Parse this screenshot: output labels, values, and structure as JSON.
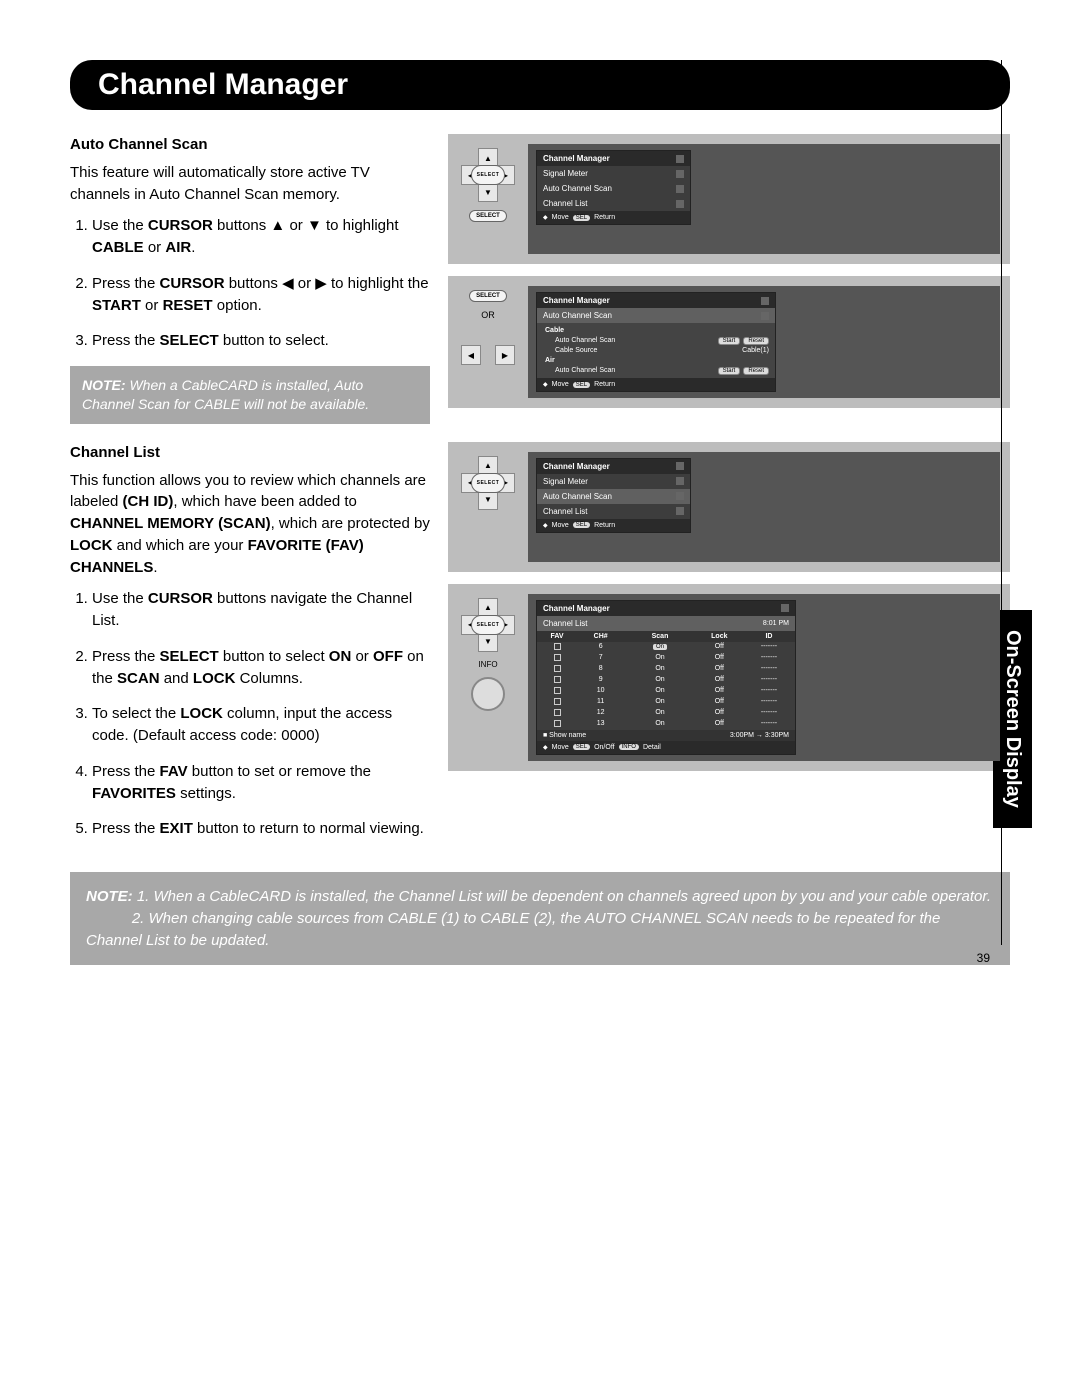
{
  "page": {
    "title": "Channel Manager",
    "side_tab": "On-Screen Display",
    "page_number": "39"
  },
  "section1": {
    "heading": "Auto Channel Scan",
    "intro": "This feature will automatically store active TV channels in Auto Channel Scan memory.",
    "steps": [
      {
        "pre": "Use the ",
        "b1": "CURSOR",
        "mid": " buttons ▲ or ▼ to highlight ",
        "b2": "CABLE",
        "mid2": " or ",
        "b3": "AIR",
        "tail": "."
      },
      {
        "pre": "Press the ",
        "b1": "CURSOR",
        "mid": " buttons ◀ or ▶ to highlight the ",
        "b2": "START",
        "mid2": " or ",
        "b3": "RESET",
        "tail": " option."
      },
      {
        "pre": "Press the ",
        "b1": "SELECT",
        "mid": " button to select.",
        "b2": "",
        "mid2": "",
        "b3": "",
        "tail": ""
      }
    ],
    "note": {
      "label": "NOTE:",
      "text": "When a CableCARD is installed, Auto Channel Scan for CABLE will not be available."
    }
  },
  "osd1": {
    "title": "Channel Manager",
    "items": [
      "Signal Meter",
      "Auto Channel Scan",
      "Channel List"
    ],
    "hint_move": "Move",
    "hint_sel": "SEL",
    "hint_ret": "Return",
    "remote_sel": "SELECT"
  },
  "osd2": {
    "title": "Channel Manager",
    "sub": "Auto Channel Scan",
    "groups": [
      {
        "head": "Cable",
        "rows": [
          {
            "label": "Auto Channel Scan",
            "btns": [
              "Start",
              "Reset"
            ]
          },
          {
            "label": "Cable Source",
            "val": "Cable(1)"
          }
        ]
      },
      {
        "head": "Air",
        "rows": [
          {
            "label": "Auto Channel Scan",
            "btns": [
              "Start",
              "Reset"
            ]
          }
        ]
      }
    ],
    "hint_move": "Move",
    "hint_sel": "SEL",
    "hint_ret": "Return",
    "or": "OR",
    "remote_sel": "SELECT"
  },
  "section2": {
    "heading": "Channel List",
    "intro_parts": {
      "t1": "This function allows you to review which channels are labeled ",
      "b1": "(CH ID)",
      "t2": ", which have been added to ",
      "b2": "CHANNEL MEMORY (SCAN)",
      "t3": ", which are protected by ",
      "b3": "LOCK",
      "t4": " and which are your ",
      "b4": "FAVORITE (FAV) CHANNELS",
      "t5": "."
    },
    "steps": [
      {
        "pre": "Use the ",
        "b1": "CURSOR",
        "tail": " buttons navigate the Channel List."
      },
      {
        "pre": "Press the ",
        "b1": "SELECT",
        "mid": " button to select ",
        "b2": "ON",
        "mid2": " or ",
        "b3": "OFF",
        "tail": " on the ",
        "b4": "SCAN",
        "mid3": " and ",
        "b5": "LOCK",
        "tail2": " Columns."
      },
      {
        "pre": "To select the ",
        "b1": "LOCK",
        "tail": " column, input the access code. (Default access code: 0000)"
      },
      {
        "pre": "Press the ",
        "b1": "FAV",
        "mid": " button to set or remove the ",
        "b2": "FAVORITES",
        "tail": " settings."
      },
      {
        "pre": "Press the ",
        "b1": "EXIT",
        "tail": " button to return to normal viewing."
      }
    ]
  },
  "osd3": {
    "title": "Channel Manager",
    "items": [
      "Signal Meter",
      "Auto Channel Scan",
      "Channel List"
    ],
    "highlight": "Auto Channel Scan",
    "hint_move": "Move",
    "hint_sel": "SEL",
    "hint_ret": "Return",
    "remote_sel": "SELECT"
  },
  "osd4": {
    "title": "Channel Manager",
    "sub": "Channel List",
    "time": "8:01 PM",
    "cols": [
      "FAV",
      "CH#",
      "Scan",
      "Lock",
      "ID"
    ],
    "rows": [
      {
        "ch": "6",
        "scan": "On",
        "scan_box": true,
        "lock": "Off",
        "id": "-------"
      },
      {
        "ch": "7",
        "scan": "On",
        "lock": "Off",
        "id": "-------"
      },
      {
        "ch": "8",
        "scan": "On",
        "lock": "Off",
        "id": "-------"
      },
      {
        "ch": "9",
        "scan": "On",
        "lock": "Off",
        "id": "-------"
      },
      {
        "ch": "10",
        "scan": "On",
        "lock": "Off",
        "id": "-------"
      },
      {
        "ch": "11",
        "scan": "On",
        "lock": "Off",
        "id": "-------"
      },
      {
        "ch": "12",
        "scan": "On",
        "lock": "Off",
        "id": "-------"
      },
      {
        "ch": "13",
        "scan": "On",
        "lock": "Off",
        "id": "-------"
      }
    ],
    "foot_show": "■ Show name",
    "foot_time": "3:00PM → 3:30PM",
    "hint_move": "Move",
    "hint_sel": "SEL",
    "hint_onoff": "On/Off",
    "hint_info": "INFO",
    "hint_detail": "Detail",
    "remote_sel": "SELECT",
    "info": "INFO"
  },
  "note2": {
    "label": "NOTE:",
    "n1": "1. When a CableCARD is installed, the Channel List will be dependent on channels agreed upon by you and your cable operator.",
    "n2": "2. When changing cable sources from CABLE (1) to CABLE (2), the AUTO CHANNEL SCAN needs to be repeated for the Channel List to be updated."
  },
  "colors": {
    "title_bg": "#000000",
    "note_bg": "#a8a8a8",
    "osd_bg": "#bdbdbd",
    "screen_bg": "#555555"
  }
}
